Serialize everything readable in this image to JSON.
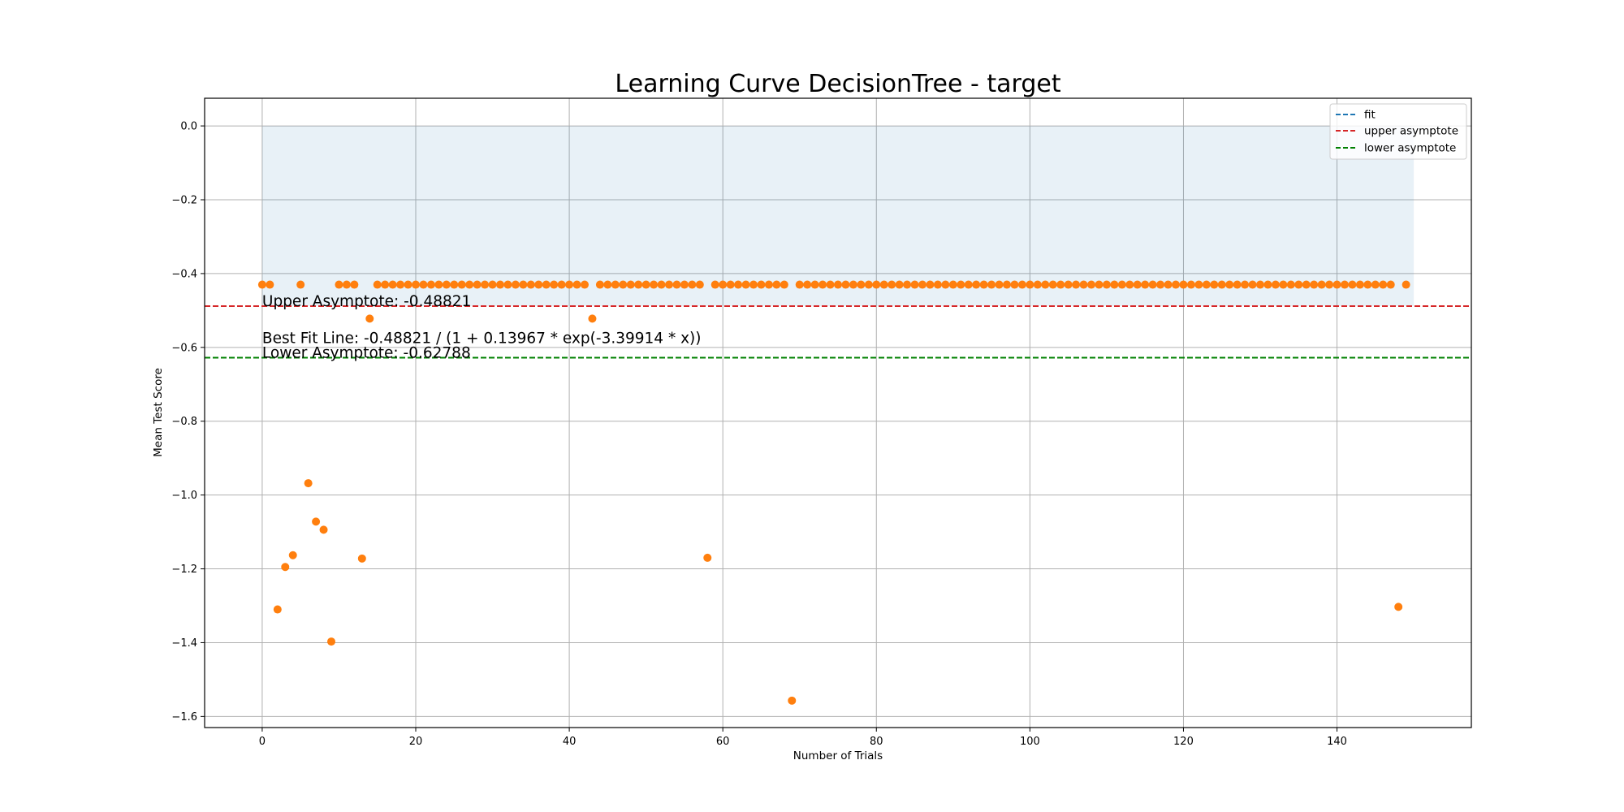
{
  "chart_data": {
    "type": "scatter",
    "title": "Learning Curve DecisionTree - target",
    "xlabel": "Number of Trials",
    "ylabel": "Mean Test Score",
    "xlim": [
      -7.5,
      157.5
    ],
    "ylim": [
      -1.63,
      0.075
    ],
    "xticks": [
      0,
      20,
      40,
      60,
      80,
      100,
      120,
      140
    ],
    "yticks": [
      0.0,
      -0.2,
      -0.4,
      -0.6,
      -0.8,
      -1.0,
      -1.2,
      -1.4,
      -1.6
    ],
    "xtick_labels": [
      "0",
      "20",
      "40",
      "60",
      "80",
      "100",
      "120",
      "140"
    ],
    "ytick_labels": [
      "0.0",
      "−0.2",
      "−0.4",
      "−0.6",
      "−0.8",
      "−1.0",
      "−1.2",
      "−1.4",
      "−1.6"
    ],
    "grid": true,
    "legend_position": "top-right",
    "legend": [
      {
        "label": "fit",
        "color": "#1f77b4",
        "style": "dashed"
      },
      {
        "label": "upper asymptote",
        "color": "#d62728",
        "style": "dashed"
      },
      {
        "label": "lower asymptote",
        "color": "#008000",
        "style": "dashed"
      }
    ],
    "shaded_band": {
      "x": [
        0,
        150
      ],
      "y": [
        -0.48821,
        0.0
      ],
      "color": "#1f77b4",
      "opacity": 0.1
    },
    "upper_asymptote": {
      "y": -0.48821,
      "color": "#d62728"
    },
    "lower_asymptote": {
      "y": -0.62788,
      "color": "#008000"
    },
    "annotations": [
      {
        "text": "Upper Asymptote: -0.48821",
        "x": 0,
        "y": -0.488
      },
      {
        "text": "Best Fit Line: -0.48821 / (1 + 0.13967 * exp(-3.39914 * x))",
        "x": 0,
        "y": -0.588
      },
      {
        "text": "Lower Asymptote: -0.62788",
        "x": 0,
        "y": -0.628
      }
    ],
    "point_color": "#ff7f0e",
    "series": [
      {
        "x": [
          0,
          1,
          2,
          3,
          4,
          5,
          6,
          7,
          8,
          9,
          10,
          11,
          12,
          13,
          14,
          15,
          16,
          17,
          18,
          19,
          20,
          21,
          22,
          23,
          24,
          25,
          26,
          27,
          28,
          29,
          30,
          31,
          32,
          33,
          34,
          35,
          36,
          37,
          38,
          39,
          40,
          41,
          42,
          43,
          44,
          45,
          46,
          47,
          48,
          49,
          50,
          51,
          52,
          53,
          54,
          55,
          56,
          57,
          58,
          59,
          60,
          61,
          62,
          63,
          64,
          65,
          66,
          67,
          68,
          69,
          70,
          71,
          72,
          73,
          74,
          75,
          76,
          77,
          78,
          79,
          80,
          81,
          82,
          83,
          84,
          85,
          86,
          87,
          88,
          89,
          90,
          91,
          92,
          93,
          94,
          95,
          96,
          97,
          98,
          99,
          100,
          101,
          102,
          103,
          104,
          105,
          106,
          107,
          108,
          109,
          110,
          111,
          112,
          113,
          114,
          115,
          116,
          117,
          118,
          119,
          120,
          121,
          122,
          123,
          124,
          125,
          126,
          127,
          128,
          129,
          130,
          131,
          132,
          133,
          134,
          135,
          136,
          137,
          138,
          139,
          140,
          141,
          142,
          143,
          144,
          145,
          146,
          147,
          148,
          149
        ],
        "y": [
          -0.43,
          -0.43,
          -1.31,
          -1.195,
          -1.163,
          -0.43,
          -0.968,
          -1.072,
          -1.094,
          -1.397,
          -0.43,
          -0.43,
          -0.43,
          -1.172,
          -0.522,
          -0.43,
          -0.43,
          -0.43,
          -0.43,
          -0.43,
          -0.43,
          -0.43,
          -0.43,
          -0.43,
          -0.43,
          -0.43,
          -0.43,
          -0.43,
          -0.43,
          -0.43,
          -0.43,
          -0.43,
          -0.43,
          -0.43,
          -0.43,
          -0.43,
          -0.43,
          -0.43,
          -0.43,
          -0.43,
          -0.43,
          -0.43,
          -0.43,
          -0.522,
          -0.43,
          -0.43,
          -0.43,
          -0.43,
          -0.43,
          -0.43,
          -0.43,
          -0.43,
          -0.43,
          -0.43,
          -0.43,
          -0.43,
          -0.43,
          -0.43,
          -1.17,
          -0.43,
          -0.43,
          -0.43,
          -0.43,
          -0.43,
          -0.43,
          -0.43,
          -0.43,
          -0.43,
          -0.43,
          -1.557,
          -0.43,
          -0.43,
          -0.43,
          -0.43,
          -0.43,
          -0.43,
          -0.43,
          -0.43,
          -0.43,
          -0.43,
          -0.43,
          -0.43,
          -0.43,
          -0.43,
          -0.43,
          -0.43,
          -0.43,
          -0.43,
          -0.43,
          -0.43,
          -0.43,
          -0.43,
          -0.43,
          -0.43,
          -0.43,
          -0.43,
          -0.43,
          -0.43,
          -0.43,
          -0.43,
          -0.43,
          -0.43,
          -0.43,
          -0.43,
          -0.43,
          -0.43,
          -0.43,
          -0.43,
          -0.43,
          -0.43,
          -0.43,
          -0.43,
          -0.43,
          -0.43,
          -0.43,
          -0.43,
          -0.43,
          -0.43,
          -0.43,
          -0.43,
          -0.43,
          -0.43,
          -0.43,
          -0.43,
          -0.43,
          -0.43,
          -0.43,
          -0.43,
          -0.43,
          -0.43,
          -0.43,
          -0.43,
          -0.43,
          -0.43,
          -0.43,
          -0.43,
          -0.43,
          -0.43,
          -0.43,
          -0.43,
          -0.43,
          -0.43,
          -0.43,
          -0.43,
          -0.43,
          -0.43,
          -0.43,
          -0.43,
          -1.303,
          -0.43
        ]
      }
    ]
  }
}
